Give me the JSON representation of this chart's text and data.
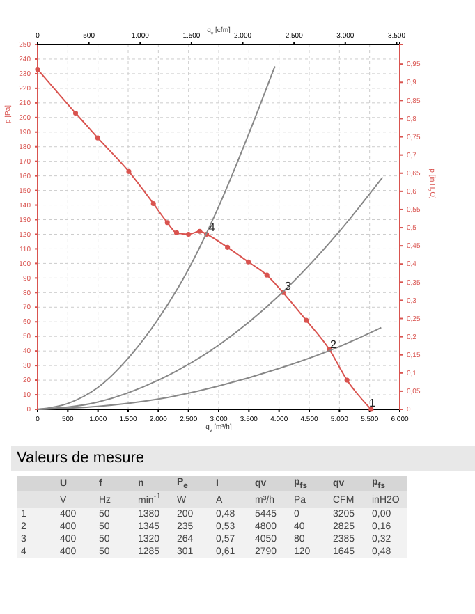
{
  "chart_data": {
    "type": "line",
    "xlabel": "q$_{v}$ [m³/h]",
    "ylabel": "p [Pa]",
    "x2label": "q$_{v}$ [cfm]",
    "y2label": "p [in H$_{2}$O]",
    "xlim": [
      0,
      6000
    ],
    "xticks": [
      0,
      500,
      {
        "value": 1000,
        "label": "1.000"
      },
      {
        "value": 1500,
        "label": "1.500"
      },
      {
        "value": 2000,
        "label": "2.000"
      },
      {
        "value": 2500,
        "label": "2.500"
      },
      {
        "value": 3000,
        "label": "3.000"
      },
      {
        "value": 3500,
        "label": "3.500"
      },
      {
        "value": 4000,
        "label": "4.000"
      },
      {
        "value": 4500,
        "label": "4.500"
      },
      {
        "value": 5000,
        "label": "5.000"
      },
      {
        "value": 5500,
        "label": "5.500"
      },
      {
        "value": 6000,
        "label": "6.000"
      }
    ],
    "x2lim": [
      0,
      3531
    ],
    "x2ticks": [
      0,
      500,
      {
        "value": 1000,
        "label": "1.000"
      },
      {
        "value": 1500,
        "label": "1.500"
      },
      {
        "value": 2000,
        "label": "2.000"
      },
      {
        "value": 2500,
        "label": "2.500"
      },
      {
        "value": 3000,
        "label": "3.000"
      },
      {
        "value": 3500,
        "label": "3.500"
      }
    ],
    "ylim": [
      0,
      250
    ],
    "yticks": [
      0,
      10,
      20,
      30,
      40,
      50,
      60,
      70,
      80,
      90,
      100,
      110,
      120,
      130,
      140,
      150,
      160,
      170,
      180,
      190,
      200,
      210,
      220,
      230,
      240,
      250
    ],
    "y2lim": [
      0,
      1.004
    ],
    "y2ticks": [
      0,
      {
        "value": 0.05,
        "label": "0,05"
      },
      {
        "value": 0.1,
        "label": "0,1"
      },
      {
        "value": 0.15,
        "label": "0,15"
      },
      {
        "value": 0.2,
        "label": "0,2"
      },
      {
        "value": 0.25,
        "label": "0,25"
      },
      {
        "value": 0.3,
        "label": "0,3"
      },
      {
        "value": 0.35,
        "label": "0,35"
      },
      {
        "value": 0.4,
        "label": "0,4"
      },
      {
        "value": 0.45,
        "label": "0,45"
      },
      {
        "value": 0.5,
        "label": "0,5"
      },
      {
        "value": 0.55,
        "label": "0,55"
      },
      {
        "value": 0.6,
        "label": "0,6"
      },
      {
        "value": 0.65,
        "label": "0,65"
      },
      {
        "value": 0.7,
        "label": "0,7"
      },
      {
        "value": 0.75,
        "label": "0,75"
      },
      {
        "value": 0.8,
        "label": "0,8"
      },
      {
        "value": 0.85,
        "label": "0,85"
      },
      {
        "value": 0.9,
        "label": "0,9"
      },
      {
        "value": 0.95,
        "label": "0,95"
      }
    ],
    "grid": true,
    "series": [
      {
        "color": "#d9534f",
        "marker": "circle",
        "x": [
          0,
          629,
          997,
          1511,
          1918,
          2149,
          2302,
          2500,
          2686,
          2800,
          3146,
          3491,
          3798,
          4067,
          4450,
          4834,
          5126,
          5525
        ],
        "values": [
          233,
          203,
          186,
          163,
          141,
          128,
          121,
          120,
          122,
          120,
          111,
          101,
          92,
          80,
          61,
          41,
          20,
          0
        ]
      },
      {
        "color": "#888888",
        "marker": "none",
        "x": [
          0,
          500,
          1000,
          1500,
          2000,
          2500,
          3000,
          3500,
          3929
        ],
        "values": [
          0,
          4,
          15,
          35,
          62,
          96,
          139,
          189,
          235
        ]
      },
      {
        "color": "#888888",
        "marker": "none",
        "x": [
          0,
          1000,
          2000,
          3000,
          4000,
          5000,
          5716
        ],
        "values": [
          0,
          5,
          20,
          44,
          78,
          122,
          159
        ]
      },
      {
        "color": "#888888",
        "marker": "none",
        "x": [
          0,
          1000,
          2000,
          3000,
          4000,
          5000,
          5693
        ],
        "values": [
          0,
          2,
          7,
          16,
          28,
          43,
          56
        ]
      }
    ],
    "annotations": [
      {
        "text": "4",
        "x": 2790,
        "y": 120
      },
      {
        "text": "3",
        "x": 4050,
        "y": 80
      },
      {
        "text": "2",
        "x": 4800,
        "y": 40
      },
      {
        "text": "1",
        "x": 5445,
        "y": 0
      },
      "Valeurs de mesure",
      "U",
      "f",
      "n",
      "P$_{e}$",
      "I",
      "qv",
      "p$_{fs}$",
      "qv",
      "p$_{fs}$",
      "V",
      "Hz",
      "min$^{-1}$",
      "W",
      "A",
      "m³/h",
      "Pa",
      "CFM",
      "inH2O",
      "1",
      "400",
      "50",
      "1380",
      "200",
      "0,48",
      "5445",
      "0",
      "3205",
      "0,00",
      "2",
      "400",
      "50",
      "1345",
      "235",
      "0,53",
      "4800",
      "40",
      "2825",
      "0,16",
      "3",
      "400",
      "50",
      "1320",
      "264",
      "0,57",
      "4050",
      "80",
      "2385",
      "0,32",
      "4",
      "400",
      "50",
      "1285",
      "301",
      "0,61",
      "2790",
      "120",
      "1645",
      "0,48"
    ]
  }
}
